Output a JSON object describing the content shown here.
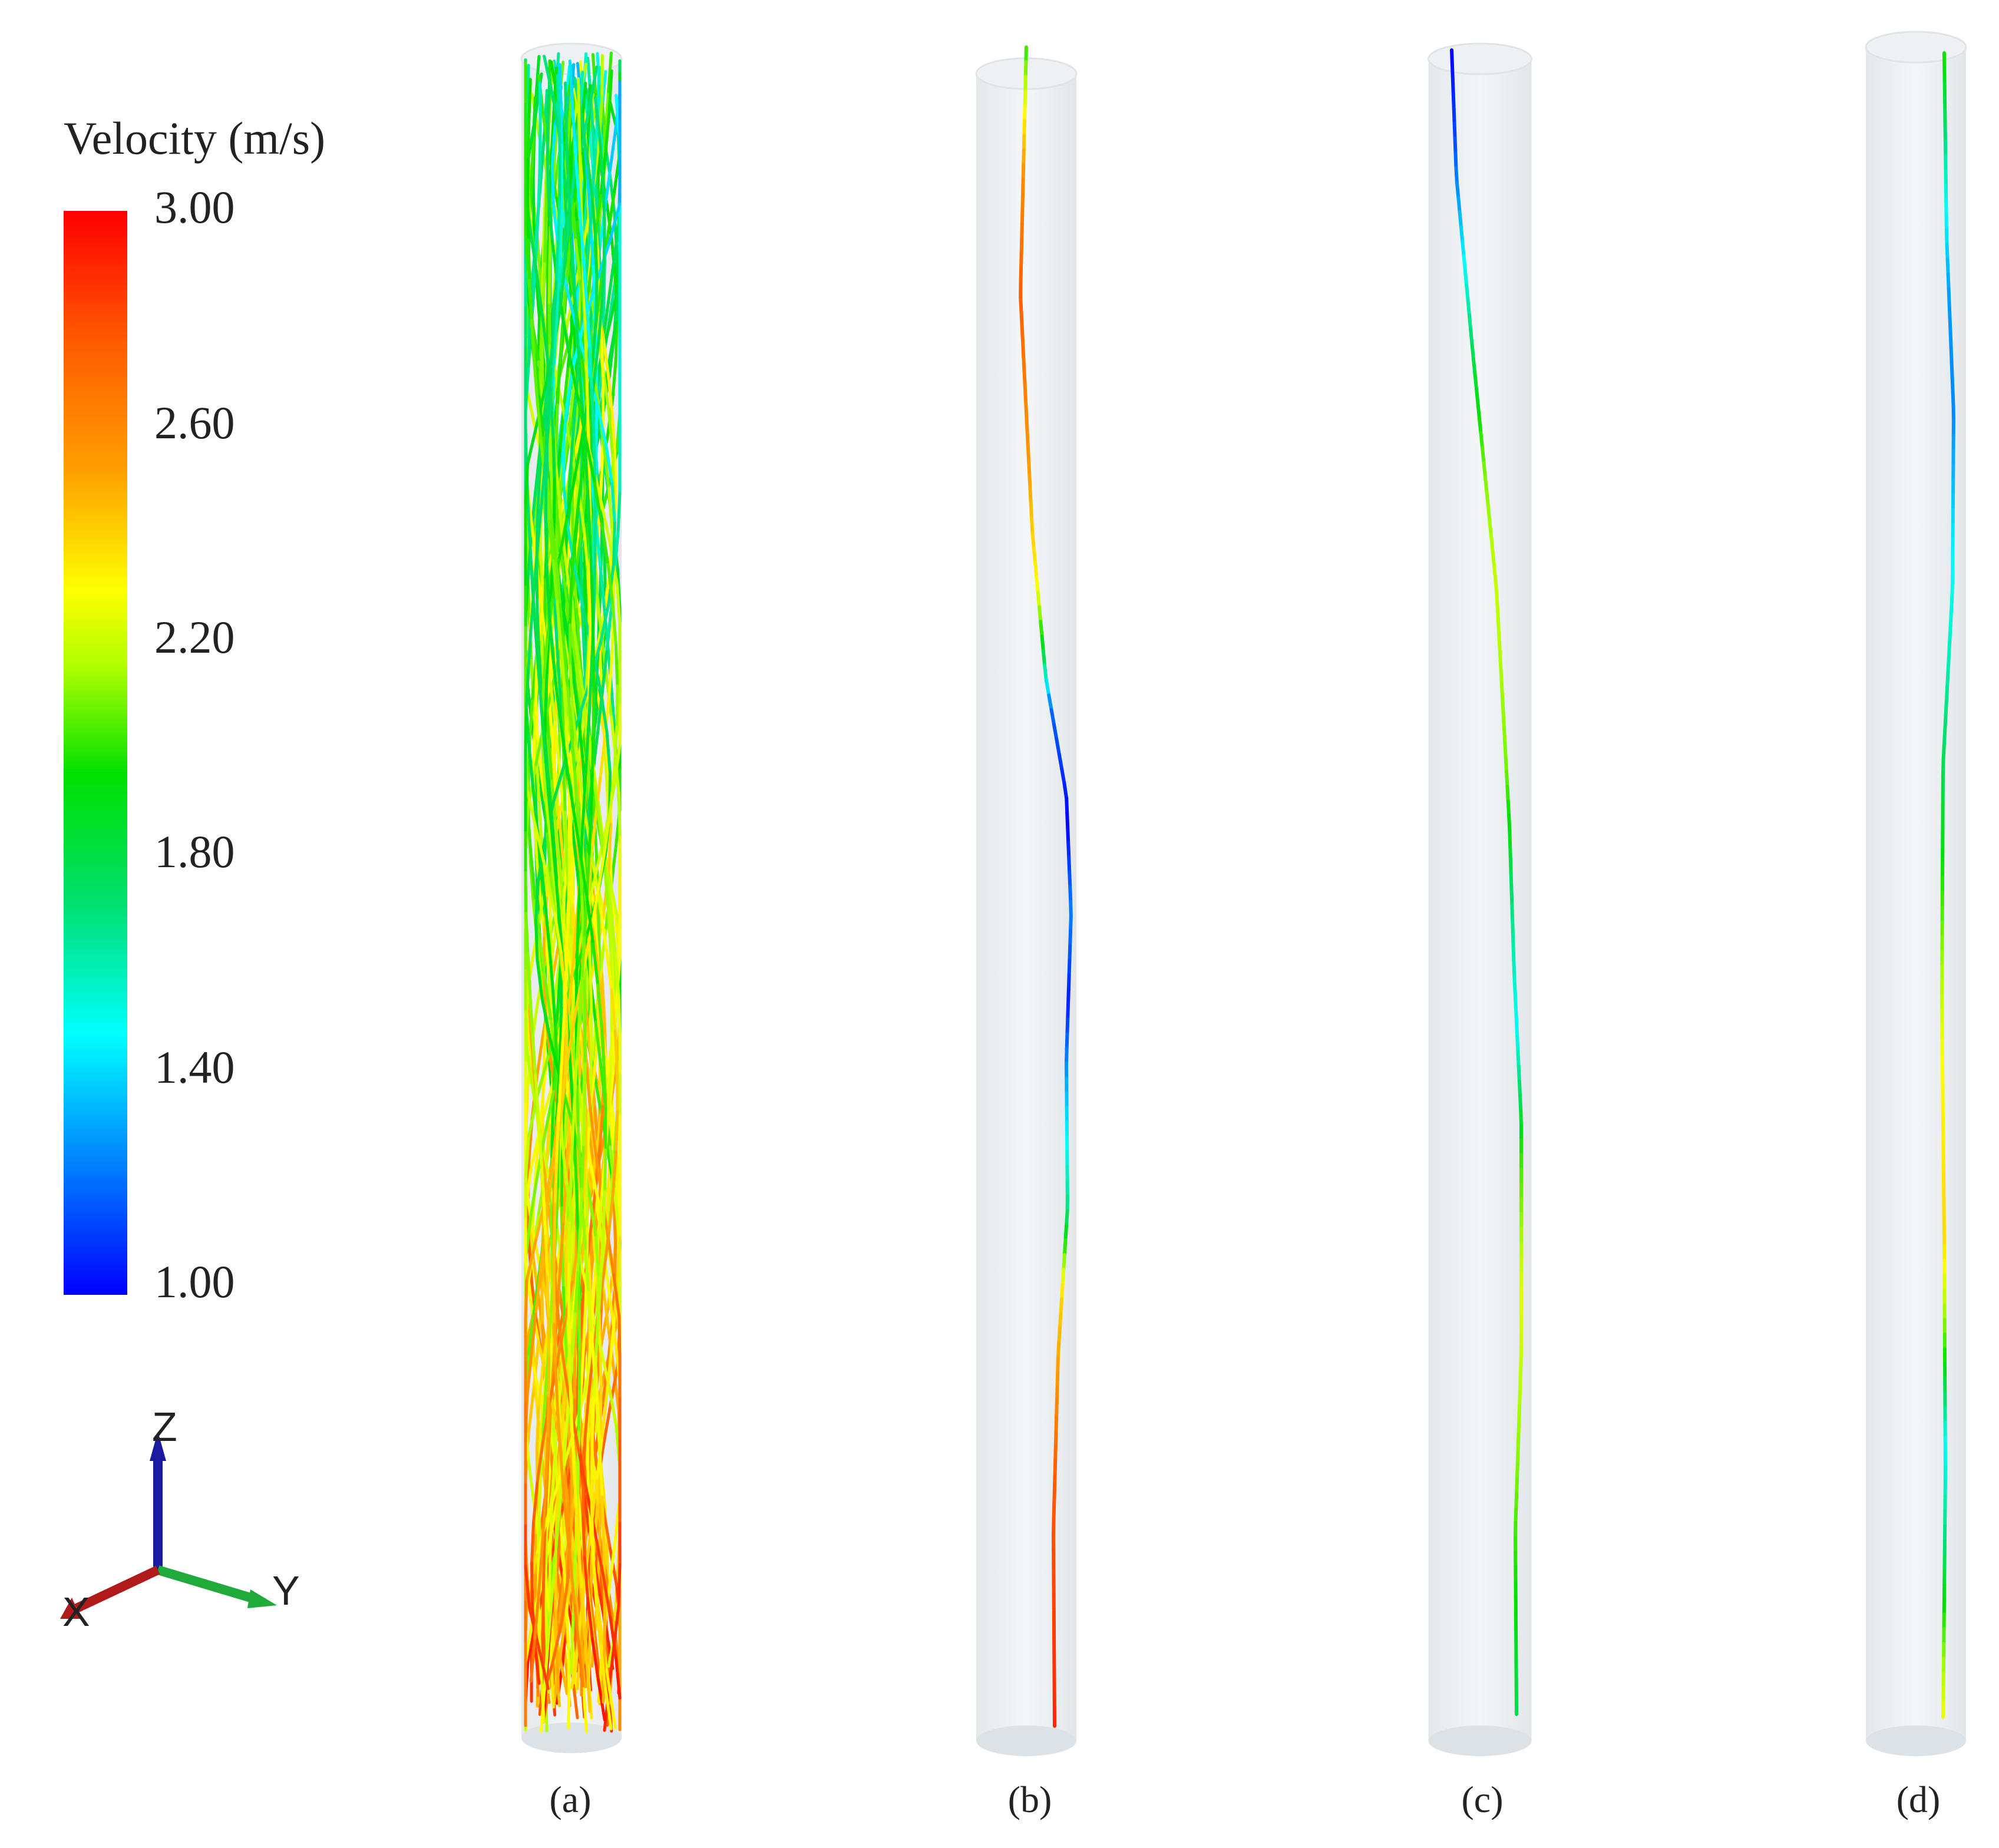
{
  "legend": {
    "title": "Velocity (m/s)",
    "min": 1.0,
    "max": 3.0,
    "ticks": [
      "3.00",
      "2.60",
      "2.20",
      "1.80",
      "1.40",
      "1.00"
    ],
    "tick_values": [
      3.0,
      2.6,
      2.2,
      1.8,
      1.4,
      1.0
    ],
    "colors": [
      "#0000ff",
      "#00ffff",
      "#00e000",
      "#ffff00",
      "#ff0000"
    ]
  },
  "axes": {
    "z": "Z",
    "y": "Y",
    "x": "X",
    "z_color": "#1a1aa0",
    "y_color": "#1faa3a",
    "x_color": "#b01a1a"
  },
  "panels": [
    {
      "label": "(a)",
      "description_free": true
    },
    {
      "label": "(b)"
    },
    {
      "label": "(c)"
    },
    {
      "label": "(d)"
    }
  ]
}
